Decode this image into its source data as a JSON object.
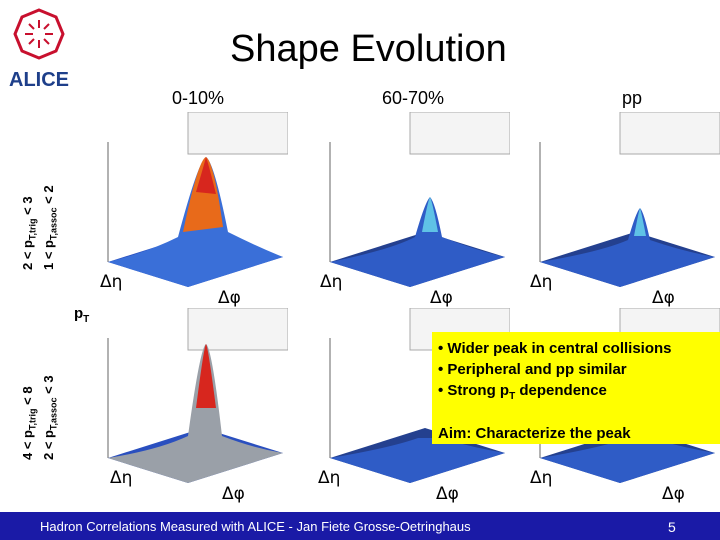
{
  "slide": {
    "title": "Shape Evolution",
    "page_number": "5",
    "footer": "Hadron Correlations Measured with ALICE - Jan Fiete Grosse-Oetringhaus"
  },
  "logo": {
    "text": "ALICE"
  },
  "columns": [
    {
      "label": "0-10%"
    },
    {
      "label": "60-70%"
    },
    {
      "label": "pp"
    }
  ],
  "rows": [
    {
      "trig": "2 < p",
      "trig_sub": "T,trig",
      "trig_tail": " < 3",
      "assoc": "1 < p",
      "assoc_sub": "T,assoc",
      "assoc_tail": " < 2"
    },
    {
      "trig": "4 < p",
      "trig_sub": "T,trig",
      "trig_tail": " < 8",
      "assoc": "2 < p",
      "assoc_sub": "T,assoc",
      "assoc_tail": " < 3"
    }
  ],
  "pt_label": {
    "main": "p",
    "sub": "T"
  },
  "axes": {
    "deta": "Δη",
    "dphi": "Δφ"
  },
  "notes": {
    "line1": "• Wider peak in central collisions",
    "line2": "• Peripheral and pp similar",
    "line3_pre": "• Strong p",
    "line3_sub": "T",
    "line3_post": " dependence",
    "aim": "Aim: Characterize the peak"
  },
  "colors": {
    "footer": "#1a1aa6",
    "note_bg": "#ffff00",
    "logo_red": "#c8102e",
    "logo_blue": "#1e3f8a"
  }
}
